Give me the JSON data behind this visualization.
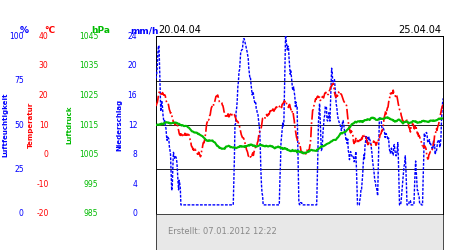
{
  "title_left": "20.04.04",
  "title_right": "25.04.04",
  "footer": "Erstellt: 07.01.2012 12:22",
  "ylabel_luftfeuchte": "Luftfeuchtigkeit",
  "ylabel_temp": "Temperatur",
  "ylabel_luftdruck": "Luftdruck",
  "ylabel_niederschlag": "Niederschlag",
  "units_percent": "%",
  "units_celsius": "°C",
  "units_hpa": "hPa",
  "units_mmh": "mm/h",
  "blue_color": "#0000ff",
  "red_color": "#ff0000",
  "green_color": "#00bb00",
  "plot_bg": "#ffffff",
  "left_bg": "#ffffff",
  "footer_bg": "#e8e8e8",
  "grid_color": "#000000",
  "blue_ticks": [
    0,
    25,
    50,
    75,
    100
  ],
  "red_ticks": [
    -20,
    -10,
    0,
    10,
    20,
    30,
    40
  ],
  "green_ticks": [
    985,
    995,
    1005,
    1015,
    1025,
    1035,
    1045
  ],
  "purple_ticks": [
    0,
    4,
    8,
    12,
    16,
    20,
    24
  ],
  "blue_min": 0,
  "blue_max": 100,
  "red_min": -20,
  "red_max": 40,
  "green_min": 985,
  "green_max": 1045,
  "purple_min": 0,
  "purple_max": 24,
  "num_points": 500,
  "seed": 17
}
